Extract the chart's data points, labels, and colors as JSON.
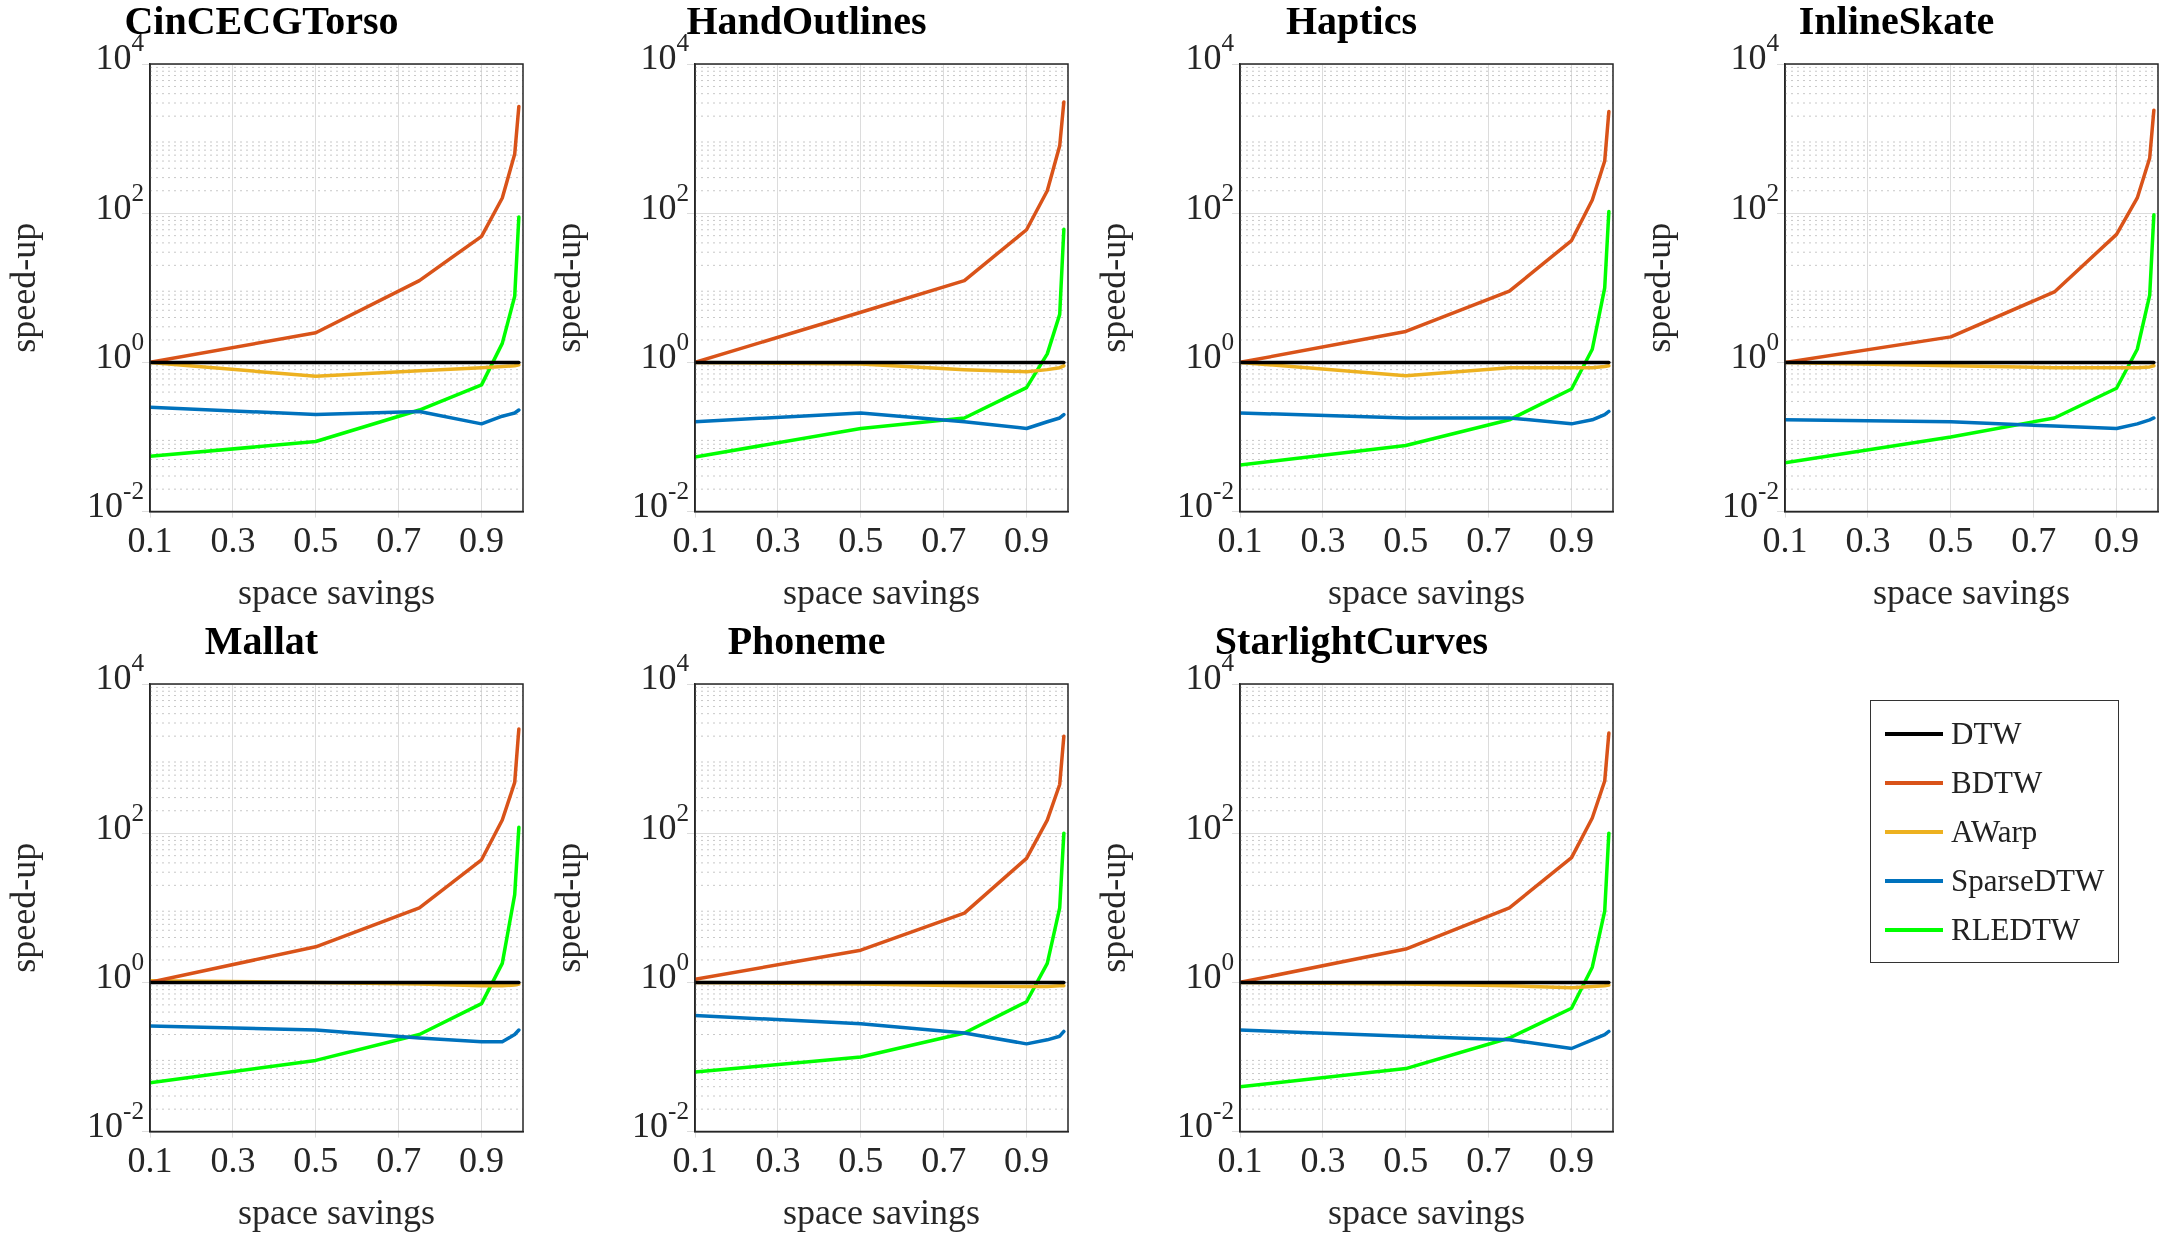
{
  "chart_data": [
    {
      "type": "line",
      "title": "CinCECGTorso",
      "xlabel": "space savings",
      "ylabel": "speed-up",
      "log": "y",
      "grid": true,
      "xlim": [
        0.1,
        1
      ],
      "xticks": [
        0.1,
        0.3,
        0.5,
        0.7,
        0.9
      ],
      "ylim": [
        0.01,
        10000
      ],
      "yticks": [
        {
          "value": 0.01,
          "label": "10$^{-2}$"
        },
        {
          "value": 1,
          "label": "10$^{0}$"
        },
        {
          "value": 100,
          "label": "10$^{2}$"
        },
        {
          "value": 10000,
          "label": "10$^{4}$"
        }
      ],
      "x": [
        0.1,
        0.5,
        0.75,
        0.9,
        0.95,
        0.98,
        0.99
      ],
      "series": [
        {
          "color": "#000000",
          "values": [
            1,
            1,
            1,
            1,
            1,
            1,
            1
          ]
        },
        {
          "color": "#d95319",
          "values": [
            1,
            2.5,
            12.5,
            49,
            160,
            620,
            2700
          ]
        },
        {
          "color": "#edb120",
          "values": [
            1,
            0.65,
            0.77,
            0.85,
            0.88,
            0.9,
            0.93
          ]
        },
        {
          "color": "#0072bd",
          "values": [
            0.25,
            0.2,
            0.22,
            0.15,
            0.19,
            0.21,
            0.23
          ]
        },
        {
          "color": "#00ff00",
          "values": [
            0.055,
            0.087,
            0.23,
            0.5,
            1.8,
            7.7,
            89
          ]
        }
      ]
    },
    {
      "type": "line",
      "title": "HandOutlines",
      "xlabel": "space savings",
      "ylabel": "speed-up",
      "log": "y",
      "grid": true,
      "xlim": [
        0.1,
        1
      ],
      "xticks": [
        0.1,
        0.3,
        0.5,
        0.7,
        0.9
      ],
      "ylim": [
        0.01,
        10000
      ],
      "yticks": [
        {
          "value": 0.01,
          "label": "10$^{-2}$"
        },
        {
          "value": 1,
          "label": "10$^{0}$"
        },
        {
          "value": 100,
          "label": "10$^{2}$"
        },
        {
          "value": 10000,
          "label": "10$^{4}$"
        }
      ],
      "x": [
        0.1,
        0.5,
        0.75,
        0.9,
        0.95,
        0.98,
        0.99
      ],
      "series": [
        {
          "color": "#000000",
          "values": [
            1,
            1,
            1,
            1,
            1,
            1,
            1
          ]
        },
        {
          "color": "#d95319",
          "values": [
            1,
            4.7,
            12.5,
            60,
            200,
            800,
            3100
          ]
        },
        {
          "color": "#edb120",
          "values": [
            1,
            0.95,
            0.8,
            0.75,
            0.8,
            0.85,
            0.9
          ]
        },
        {
          "color": "#0072bd",
          "values": [
            0.16,
            0.21,
            0.16,
            0.13,
            0.16,
            0.18,
            0.2
          ]
        },
        {
          "color": "#00ff00",
          "values": [
            0.054,
            0.13,
            0.18,
            0.46,
            1.3,
            4.4,
            61
          ]
        }
      ]
    },
    {
      "type": "line",
      "title": "Haptics",
      "xlabel": "space savings",
      "ylabel": "speed-up",
      "log": "y",
      "grid": true,
      "xlim": [
        0.1,
        1
      ],
      "xticks": [
        0.1,
        0.3,
        0.5,
        0.7,
        0.9
      ],
      "ylim": [
        0.01,
        10000
      ],
      "yticks": [
        {
          "value": 0.01,
          "label": "10$^{-2}$"
        },
        {
          "value": 1,
          "label": "10$^{0}$"
        },
        {
          "value": 100,
          "label": "10$^{2}$"
        },
        {
          "value": 10000,
          "label": "10$^{4}$"
        }
      ],
      "x": [
        0.1,
        0.5,
        0.75,
        0.9,
        0.95,
        0.98,
        0.99
      ],
      "series": [
        {
          "color": "#000000",
          "values": [
            1,
            1,
            1,
            1,
            1,
            1,
            1
          ]
        },
        {
          "color": "#d95319",
          "values": [
            1,
            2.6,
            9,
            43,
            150,
            500,
            2300
          ]
        },
        {
          "color": "#edb120",
          "values": [
            1,
            0.66,
            0.85,
            0.85,
            0.85,
            0.88,
            0.9
          ]
        },
        {
          "color": "#0072bd",
          "values": [
            0.21,
            0.18,
            0.18,
            0.15,
            0.17,
            0.2,
            0.22
          ]
        },
        {
          "color": "#00ff00",
          "values": [
            0.042,
            0.077,
            0.17,
            0.44,
            1.5,
            10,
            105
          ]
        }
      ]
    },
    {
      "type": "line",
      "title": "InlineSkate",
      "xlabel": "space savings",
      "ylabel": "speed-up",
      "log": "y",
      "grid": true,
      "xlim": [
        0.1,
        1
      ],
      "xticks": [
        0.1,
        0.3,
        0.5,
        0.7,
        0.9
      ],
      "ylim": [
        0.01,
        10000
      ],
      "yticks": [
        {
          "value": 0.01,
          "label": "10$^{-2}$"
        },
        {
          "value": 1,
          "label": "10$^{0}$"
        },
        {
          "value": 100,
          "label": "10$^{2}$"
        },
        {
          "value": 10000,
          "label": "10$^{4}$"
        }
      ],
      "x": [
        0.1,
        0.5,
        0.75,
        0.9,
        0.95,
        0.98,
        0.99
      ],
      "series": [
        {
          "color": "#000000",
          "values": [
            1,
            1,
            1,
            1,
            1,
            1,
            1
          ]
        },
        {
          "color": "#d95319",
          "values": [
            1,
            2.2,
            8.8,
            52,
            160,
            550,
            2400
          ]
        },
        {
          "color": "#edb120",
          "values": [
            1,
            0.9,
            0.85,
            0.85,
            0.85,
            0.87,
            0.9
          ]
        },
        {
          "color": "#0072bd",
          "values": [
            0.17,
            0.16,
            0.14,
            0.13,
            0.15,
            0.17,
            0.18
          ]
        },
        {
          "color": "#00ff00",
          "values": [
            0.045,
            0.1,
            0.18,
            0.45,
            1.5,
            8,
            95
          ]
        }
      ]
    },
    {
      "type": "line",
      "title": "Mallat",
      "xlabel": "space savings",
      "ylabel": "speed-up",
      "log": "y",
      "grid": true,
      "xlim": [
        0.1,
        1
      ],
      "xticks": [
        0.1,
        0.3,
        0.5,
        0.7,
        0.9
      ],
      "ylim": [
        0.01,
        10000
      ],
      "yticks": [
        {
          "value": 0.01,
          "label": "10$^{-2}$"
        },
        {
          "value": 1,
          "label": "10$^{0}$"
        },
        {
          "value": 100,
          "label": "10$^{2}$"
        },
        {
          "value": 10000,
          "label": "10$^{4}$"
        }
      ],
      "x": [
        0.1,
        0.5,
        0.75,
        0.9,
        0.95,
        0.98,
        0.99
      ],
      "series": [
        {
          "color": "#000000",
          "values": [
            1,
            1,
            1,
            1,
            1,
            1,
            1
          ]
        },
        {
          "color": "#d95319",
          "values": [
            1,
            3,
            10,
            44,
            150,
            480,
            2500
          ]
        },
        {
          "color": "#edb120",
          "values": [
            1.05,
            1,
            0.95,
            0.9,
            0.9,
            0.92,
            0.95
          ]
        },
        {
          "color": "#0072bd",
          "values": [
            0.26,
            0.23,
            0.18,
            0.16,
            0.16,
            0.2,
            0.23
          ]
        },
        {
          "color": "#00ff00",
          "values": [
            0.045,
            0.09,
            0.2,
            0.52,
            1.8,
            15,
            120
          ]
        }
      ]
    },
    {
      "type": "line",
      "title": "Phoneme",
      "xlabel": "space savings",
      "ylabel": "speed-up",
      "log": "y",
      "grid": true,
      "xlim": [
        0.1,
        1
      ],
      "xticks": [
        0.1,
        0.3,
        0.5,
        0.7,
        0.9
      ],
      "ylim": [
        0.01,
        10000
      ],
      "yticks": [
        {
          "value": 0.01,
          "label": "10$^{-2}$"
        },
        {
          "value": 1,
          "label": "10$^{0}$"
        },
        {
          "value": 100,
          "label": "10$^{2}$"
        },
        {
          "value": 10000,
          "label": "10$^{4}$"
        }
      ],
      "x": [
        0.1,
        0.5,
        0.75,
        0.9,
        0.95,
        0.98,
        0.99
      ],
      "series": [
        {
          "color": "#000000",
          "values": [
            1,
            1,
            1,
            1,
            1,
            1,
            1
          ]
        },
        {
          "color": "#d95319",
          "values": [
            1.1,
            2.7,
            8.5,
            46,
            150,
            450,
            2000
          ]
        },
        {
          "color": "#edb120",
          "values": [
            1,
            0.95,
            0.9,
            0.88,
            0.88,
            0.9,
            0.9
          ]
        },
        {
          "color": "#0072bd",
          "values": [
            0.36,
            0.28,
            0.21,
            0.15,
            0.17,
            0.19,
            0.22
          ]
        },
        {
          "color": "#00ff00",
          "values": [
            0.063,
            0.1,
            0.21,
            0.55,
            1.8,
            10,
            100
          ]
        }
      ]
    },
    {
      "type": "line",
      "title": "StarlightCurves",
      "xlabel": "space savings",
      "ylabel": "speed-up",
      "log": "y",
      "grid": true,
      "legend": "right",
      "xlim": [
        0.1,
        1
      ],
      "xticks": [
        0.1,
        0.3,
        0.5,
        0.7,
        0.9
      ],
      "ylim": [
        0.01,
        10000
      ],
      "yticks": [
        {
          "value": 0.01,
          "label": "10$^{-2}$"
        },
        {
          "value": 1,
          "label": "10$^{0}$"
        },
        {
          "value": 100,
          "label": "10$^{2}$"
        },
        {
          "value": 10000,
          "label": "10$^{4}$"
        }
      ],
      "x": [
        0.1,
        0.5,
        0.75,
        0.9,
        0.95,
        0.98,
        0.99
      ],
      "series": [
        {
          "name": "DTW",
          "color": "#000000",
          "values": [
            1,
            1,
            1,
            1,
            1,
            1,
            1
          ]
        },
        {
          "name": "BDTW",
          "color": "#d95319",
          "values": [
            1,
            2.8,
            10,
            47,
            160,
            500,
            2200
          ]
        },
        {
          "name": "AWarp",
          "color": "#edb120",
          "values": [
            1,
            0.95,
            0.9,
            0.85,
            0.88,
            0.9,
            0.92
          ]
        },
        {
          "name": "SparseDTW",
          "color": "#0072bd",
          "values": [
            0.23,
            0.19,
            0.17,
            0.13,
            0.17,
            0.2,
            0.22
          ]
        },
        {
          "name": "RLEDTW",
          "color": "#00ff00",
          "values": [
            0.04,
            0.07,
            0.18,
            0.45,
            1.6,
            9,
            100
          ]
        }
      ]
    }
  ]
}
